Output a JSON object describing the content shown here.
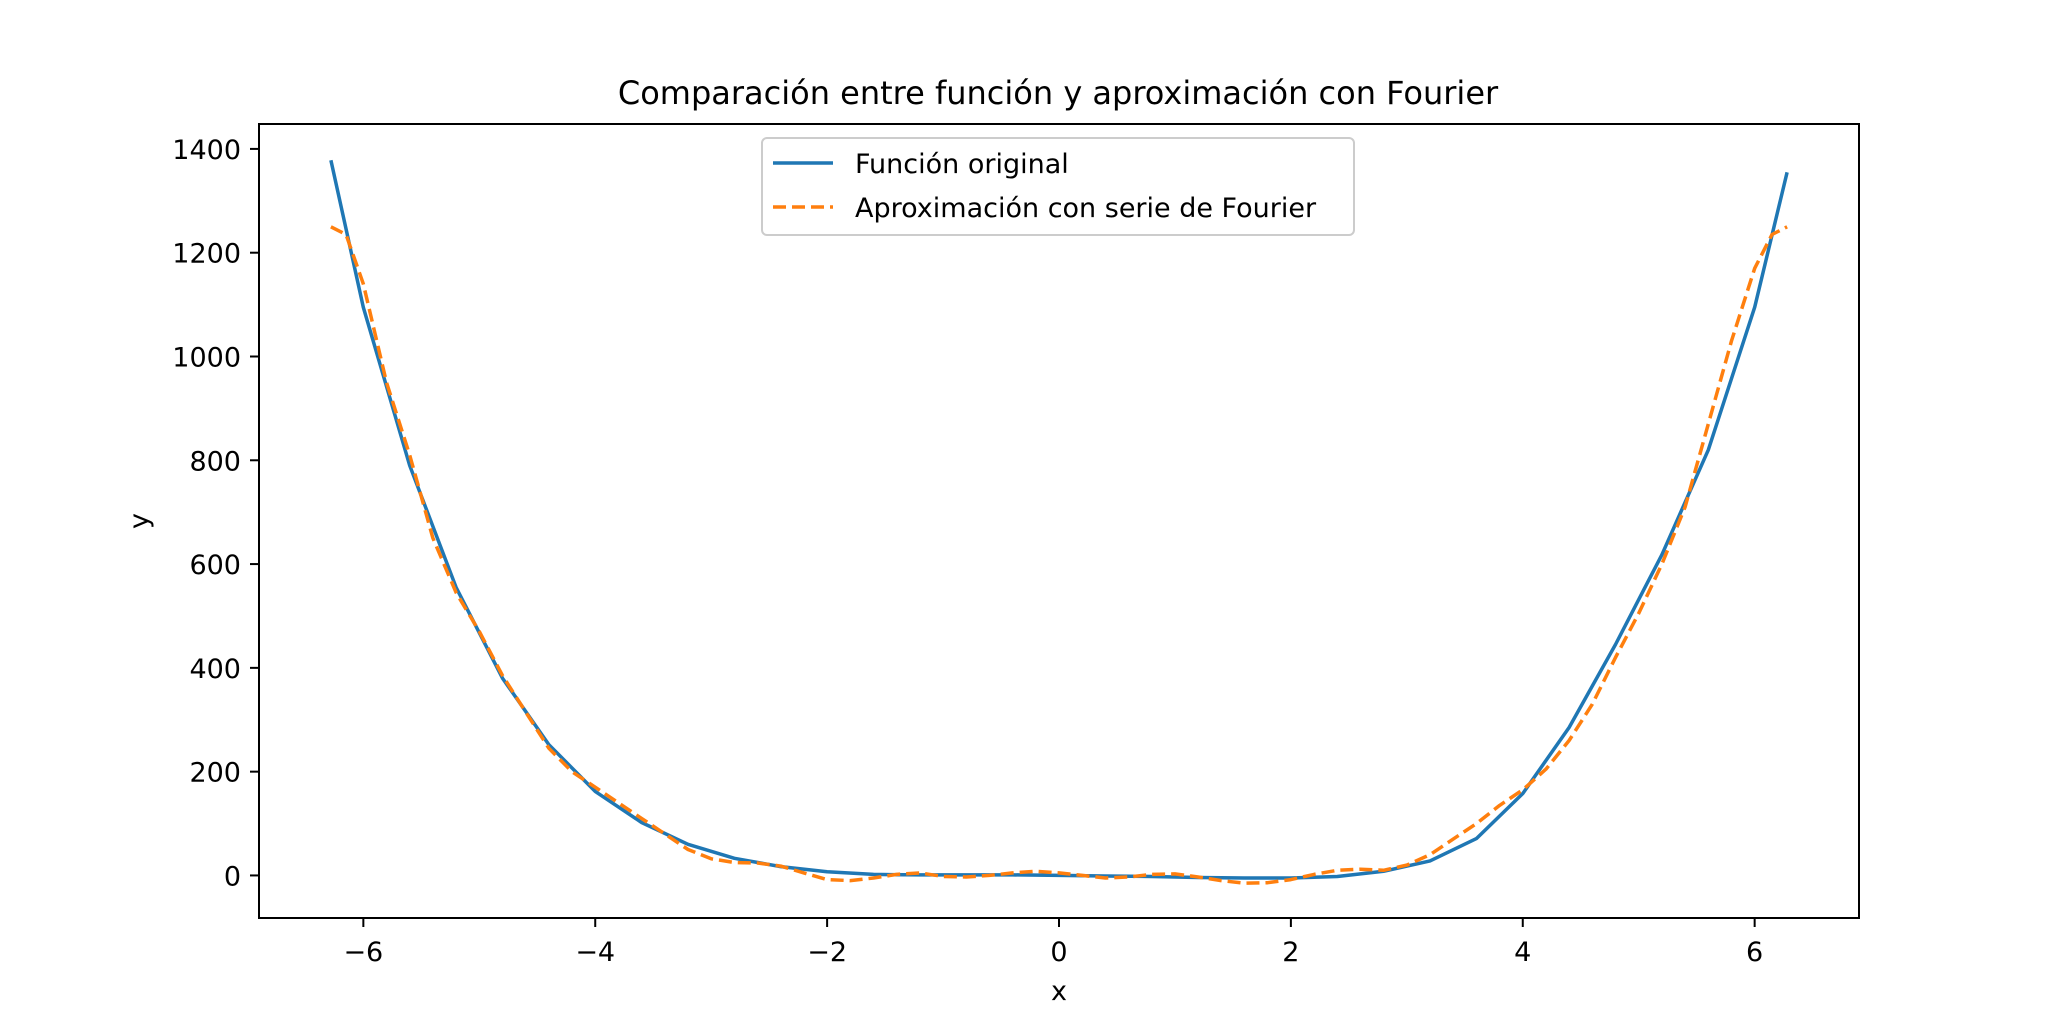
{
  "chart_data": {
    "type": "line",
    "title": "Comparación entre función y aproximación con Fourier",
    "xlabel": "x",
    "ylabel": "y",
    "xlim": [
      -6.9,
      6.9
    ],
    "ylim": [
      -82,
      1448
    ],
    "x_ticks": [
      -6,
      -4,
      -2,
      0,
      2,
      4,
      6
    ],
    "x_tick_labels": [
      "−6",
      "−4",
      "−2",
      "0",
      "2",
      "4",
      "6"
    ],
    "y_ticks": [
      0,
      200,
      400,
      600,
      800,
      1000,
      1200,
      1400
    ],
    "y_tick_labels": [
      "0",
      "200",
      "400",
      "600",
      "800",
      "1000",
      "1200",
      "1400"
    ],
    "grid": false,
    "legend_position": "upper center",
    "series": [
      {
        "name": "Función original",
        "color": "#1f77b4",
        "style": "solid",
        "x": [
          -6.28,
          -6.0,
          -5.6,
          -5.2,
          -4.8,
          -4.4,
          -4.0,
          -3.6,
          -3.2,
          -2.8,
          -2.4,
          -2.0,
          -1.6,
          -1.2,
          -0.8,
          -0.4,
          0.0,
          0.4,
          0.8,
          1.2,
          1.6,
          2.0,
          2.4,
          2.8,
          3.2,
          3.6,
          4.0,
          4.4,
          4.8,
          5.2,
          5.6,
          6.0,
          6.28
        ],
        "y": [
          1378,
          1095,
          790,
          555,
          380,
          252,
          162,
          102,
          60,
          33,
          17,
          7,
          2,
          1,
          1,
          1,
          0,
          -1,
          -2,
          -4,
          -5,
          -5,
          -2,
          8,
          28,
          71,
          158,
          285,
          445,
          618,
          820,
          1095,
          1355
        ]
      },
      {
        "name": "Aproximación con serie de Fourier",
        "color": "#ff7f0e",
        "style": "dashed",
        "x": [
          -6.28,
          -6.15,
          -6.0,
          -5.8,
          -5.6,
          -5.4,
          -5.2,
          -5.0,
          -4.8,
          -4.6,
          -4.4,
          -4.2,
          -4.0,
          -3.8,
          -3.6,
          -3.4,
          -3.2,
          -3.0,
          -2.8,
          -2.6,
          -2.4,
          -2.2,
          -2.0,
          -1.8,
          -1.6,
          -1.4,
          -1.2,
          -1.0,
          -0.8,
          -0.6,
          -0.4,
          -0.2,
          0.0,
          0.2,
          0.4,
          0.6,
          0.8,
          1.0,
          1.2,
          1.4,
          1.6,
          1.8,
          2.0,
          2.2,
          2.4,
          2.6,
          2.8,
          3.0,
          3.2,
          3.4,
          3.6,
          3.8,
          4.0,
          4.2,
          4.4,
          4.6,
          4.8,
          5.0,
          5.2,
          5.4,
          5.6,
          5.8,
          6.0,
          6.15,
          6.28
        ],
        "y": [
          1250,
          1235,
          1140,
          950,
          810,
          650,
          545,
          470,
          385,
          315,
          245,
          200,
          170,
          140,
          110,
          80,
          50,
          32,
          25,
          24,
          18,
          5,
          -8,
          -10,
          -5,
          2,
          5,
          -2,
          -3,
          0,
          5,
          8,
          5,
          0,
          -5,
          -3,
          2,
          3,
          -3,
          -10,
          -15,
          -14,
          -8,
          2,
          10,
          12,
          10,
          20,
          40,
          70,
          100,
          135,
          165,
          205,
          260,
          330,
          420,
          505,
          600,
          710,
          870,
          1030,
          1170,
          1235,
          1250
        ]
      }
    ]
  }
}
